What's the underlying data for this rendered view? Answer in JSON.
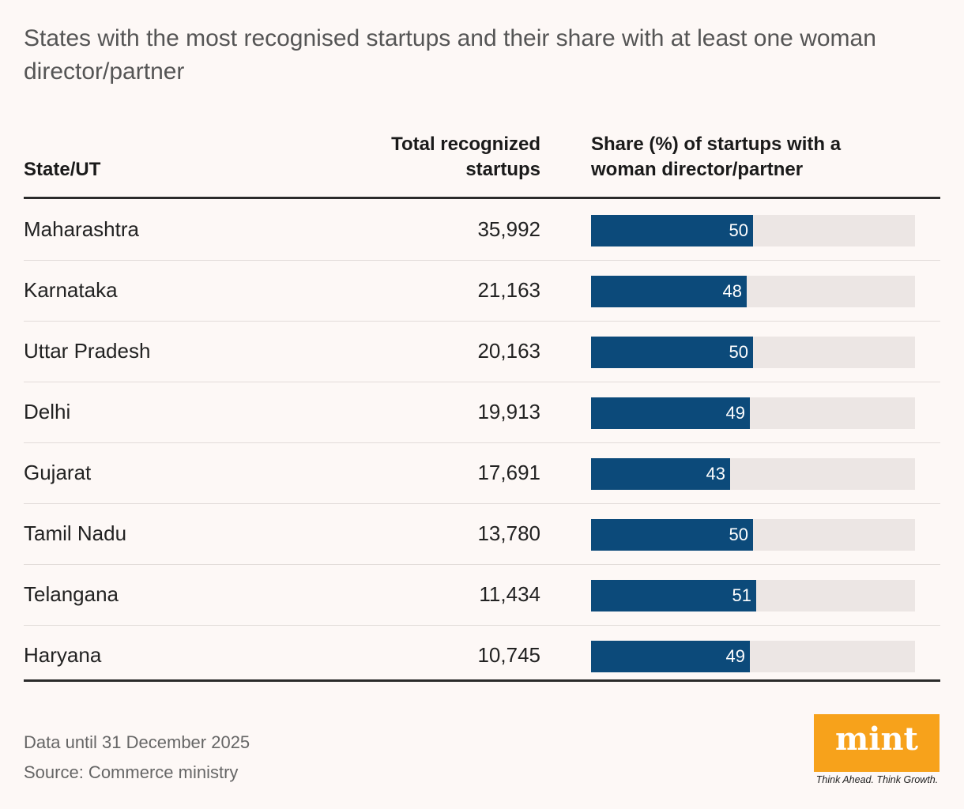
{
  "title": "States with the most recognised startups and their share with at least one woman director/partner",
  "header": {
    "state": "State/UT",
    "total_line1": "Total recognized",
    "total_line2": "startups",
    "share_line1": "Share (%) of startups with a",
    "share_line2": "woman director/partner"
  },
  "chart_data": {
    "type": "table",
    "title": "States with the most recognised startups and their share with at least one woman director/partner",
    "columns": [
      "State/UT",
      "Total recognized startups",
      "Share (%) of startups with a woman director/partner"
    ],
    "bar_max": 100,
    "rows": [
      {
        "state": "Maharashtra",
        "total": "35,992",
        "share": 50
      },
      {
        "state": "Karnataka",
        "total": "21,163",
        "share": 48
      },
      {
        "state": "Uttar Pradesh",
        "total": "20,163",
        "share": 50
      },
      {
        "state": "Delhi",
        "total": "19,913",
        "share": 49
      },
      {
        "state": "Gujarat",
        "total": "17,691",
        "share": 43
      },
      {
        "state": "Tamil Nadu",
        "total": "13,780",
        "share": 50
      },
      {
        "state": "Telangana",
        "total": "11,434",
        "share": 51
      },
      {
        "state": "Haryana",
        "total": "10,745",
        "share": 49
      }
    ]
  },
  "colors": {
    "bar": "#0c4a7a",
    "track": "#ece6e4",
    "logo_bg": "#f7a21b"
  },
  "footer": {
    "note": "Data until 31 December 2025",
    "source": "Source: Commerce ministry"
  },
  "logo": {
    "name": "mint",
    "tagline": "Think Ahead. Think Growth."
  }
}
